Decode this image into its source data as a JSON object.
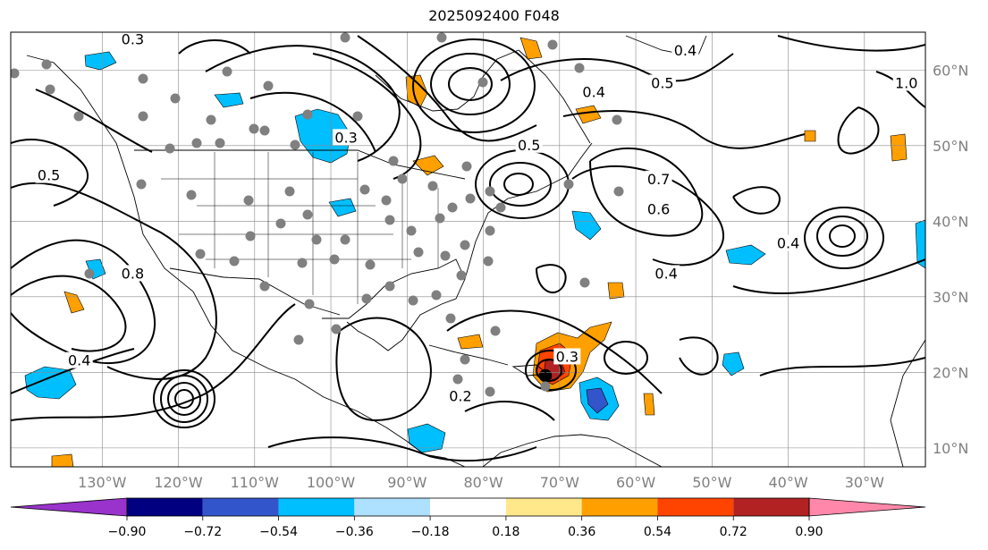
{
  "title": "2025092400 F048",
  "lon_ticks": [
    {
      "label": "130°W",
      "lon": -130
    },
    {
      "label": "120°W",
      "lon": -120
    },
    {
      "label": "110°W",
      "lon": -110
    },
    {
      "label": "100°W",
      "lon": -100
    },
    {
      "label": "90°W",
      "lon": -90
    },
    {
      "label": "80°W",
      "lon": -80
    },
    {
      "label": "70°W",
      "lon": -70
    },
    {
      "label": "60°W",
      "lon": -60
    },
    {
      "label": "50°W",
      "lon": -50
    },
    {
      "label": "40°W",
      "lon": -40
    },
    {
      "label": "30°W",
      "lon": -30
    }
  ],
  "lat_ticks": [
    {
      "label": "60°N",
      "lat": 60
    },
    {
      "label": "50°N",
      "lat": 50
    },
    {
      "label": "40°N",
      "lat": 40
    },
    {
      "label": "30°N",
      "lat": 30
    },
    {
      "label": "20°N",
      "lat": 20
    },
    {
      "label": "10°N",
      "lat": 10
    }
  ],
  "colorbar": {
    "levels": [
      "−0.90",
      "−0.72",
      "−0.54",
      "−0.36",
      "−0.18",
      "0.18",
      "0.36",
      "0.54",
      "0.72",
      "0.90"
    ],
    "colors": [
      "#9933cc",
      "#000080",
      "#3355cc",
      "#00bfff",
      "#aee0ff",
      "#ffffff",
      "#ffe88a",
      "#ffa000",
      "#ff4400",
      "#b22222",
      "#ff88aa"
    ]
  },
  "contour_labels": [
    {
      "text": "0.4",
      "lon": -53.5,
      "lat": 62.5
    },
    {
      "text": "0.5",
      "lon": -56.5,
      "lat": 58.2
    },
    {
      "text": "0.4",
      "lon": -65.5,
      "lat": 57.0
    },
    {
      "text": "1.0",
      "lon": -24.5,
      "lat": 58.2
    },
    {
      "text": "0.3",
      "lon": -98,
      "lat": 51.0
    },
    {
      "text": "0.5",
      "lon": -74,
      "lat": 50.0
    },
    {
      "text": "0.7",
      "lon": -57,
      "lat": 45.5
    },
    {
      "text": "0.6",
      "lon": -57,
      "lat": 41.5
    },
    {
      "text": "0.4",
      "lon": -40,
      "lat": 37.0
    },
    {
      "text": "0.4",
      "lon": -56,
      "lat": 33.0
    },
    {
      "text": "0.3",
      "lon": -69,
      "lat": 22.0
    },
    {
      "text": "0.2",
      "lon": -83,
      "lat": 16.8
    },
    {
      "text": "0.8",
      "lon": -126,
      "lat": 33.0
    },
    {
      "text": "0.4",
      "lon": -133,
      "lat": 21.5
    },
    {
      "text": "0.5",
      "lon": -137,
      "lat": 46.0
    },
    {
      "text": "0.3",
      "lon": -126,
      "lat": 64.0
    }
  ]
}
